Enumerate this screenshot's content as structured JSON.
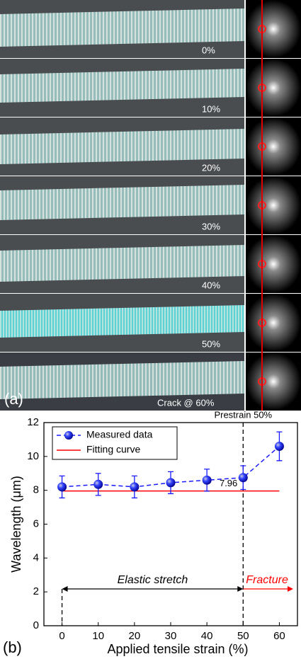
{
  "panel_a": {
    "label": "(a)",
    "rows": [
      {
        "label": "0%"
      },
      {
        "label": "10%"
      },
      {
        "label": "20%"
      },
      {
        "label": "30%"
      },
      {
        "label": "40%"
      },
      {
        "label": "50%"
      },
      {
        "label": "Crack @ 60%"
      }
    ]
  },
  "chart_data": {
    "type": "line",
    "panel_label": "(b)",
    "x_label": "Applied tensile strain (%)",
    "y_label": "Wavelength (μm)",
    "x": [
      0,
      10,
      20,
      30,
      40,
      50,
      60
    ],
    "series": [
      {
        "name": "Measured data",
        "color": "#1a1aff",
        "values": [
          8.2,
          8.35,
          8.2,
          8.45,
          8.6,
          8.75,
          10.6
        ],
        "errors": [
          0.65,
          0.65,
          0.65,
          0.65,
          0.65,
          0.7,
          0.85
        ]
      },
      {
        "name": "Fitting curve",
        "color": "#ff0000",
        "x": [
          0,
          60
        ],
        "values": [
          7.96,
          7.96
        ]
      }
    ],
    "annotations": [
      "7.96",
      "Prestrain 50%",
      "Elastic stretch",
      "Fracture"
    ],
    "xlim": [
      -5,
      65
    ],
    "ylim": [
      0,
      12
    ],
    "xticks": [
      0,
      10,
      20,
      30,
      40,
      50,
      60
    ],
    "yticks": [
      0,
      2,
      4,
      6,
      8,
      10,
      12
    ],
    "legend": "upper left"
  }
}
